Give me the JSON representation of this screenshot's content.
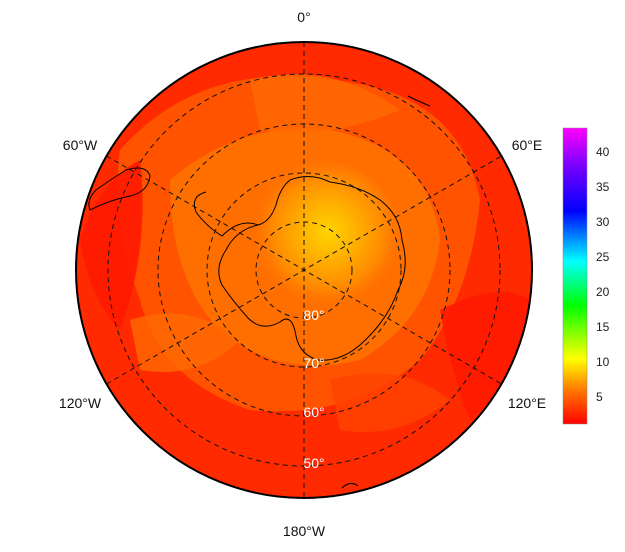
{
  "projection": "south polar stereographic",
  "longitude_labels": [
    {
      "key": "0",
      "text": "0°"
    },
    {
      "key": "60e",
      "text": "60°E"
    },
    {
      "key": "120e",
      "text": "120°E"
    },
    {
      "key": "180w",
      "text": "180°W"
    },
    {
      "key": "120w",
      "text": "120°W"
    },
    {
      "key": "60w",
      "text": "60°W"
    }
  ],
  "latitude_labels": [
    {
      "key": "80",
      "text": "80°"
    },
    {
      "key": "70",
      "text": "70°"
    },
    {
      "key": "60",
      "text": "60°"
    },
    {
      "key": "50",
      "text": "50°"
    }
  ],
  "grid": {
    "style": "dashed",
    "color": "#111111"
  },
  "colorbar": {
    "ticks": [
      "5",
      "10",
      "15",
      "20",
      "25",
      "30",
      "35",
      "40"
    ],
    "range": [
      1,
      43
    ],
    "colors_low_to_high": [
      "#ff0000",
      "#ff7f00",
      "#ffff00",
      "#00ff00",
      "#00ffff",
      "#0000ff",
      "#8000ff",
      "#ff00ff"
    ]
  },
  "field": {
    "background_color": "#ff2a00",
    "description_values": "Mostly low values (~1-5); higher (~6-9) centered over East Antarctica near the pole"
  }
}
